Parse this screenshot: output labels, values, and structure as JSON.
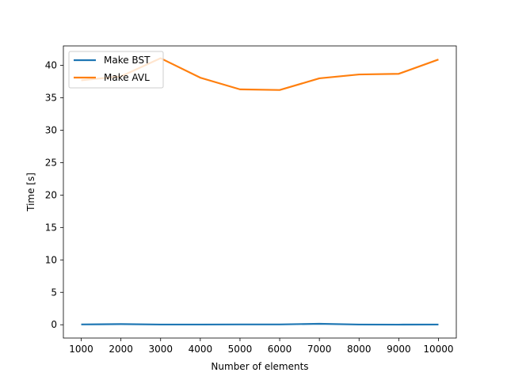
{
  "chart_data": {
    "type": "line",
    "title": "",
    "xlabel": "Number of elements",
    "ylabel": "Time [s]",
    "x": [
      1000,
      2000,
      3000,
      4000,
      5000,
      6000,
      7000,
      8000,
      9000,
      10000
    ],
    "x_ticks": [
      "1000",
      "2000",
      "3000",
      "4000",
      "5000",
      "6000",
      "7000",
      "8000",
      "9000",
      "10000"
    ],
    "y_ticks": [
      "0",
      "5",
      "10",
      "15",
      "20",
      "25",
      "30",
      "35",
      "40"
    ],
    "xlim": [
      550,
      10450
    ],
    "ylim": [
      -2.05,
      43.0
    ],
    "grid": false,
    "legend_position": "upper-left",
    "series": [
      {
        "name": "Make BST",
        "color": "#1f77b4",
        "values": [
          0.05,
          0.1,
          0.03,
          0.03,
          0.05,
          0.05,
          0.15,
          0.03,
          0.02,
          0.03
        ]
      },
      {
        "name": "Make AVL",
        "color": "#ff7f0e",
        "values": [
          37.7,
          38.3,
          41.1,
          38.1,
          36.3,
          36.2,
          38.0,
          38.6,
          38.7,
          40.9
        ]
      }
    ]
  }
}
